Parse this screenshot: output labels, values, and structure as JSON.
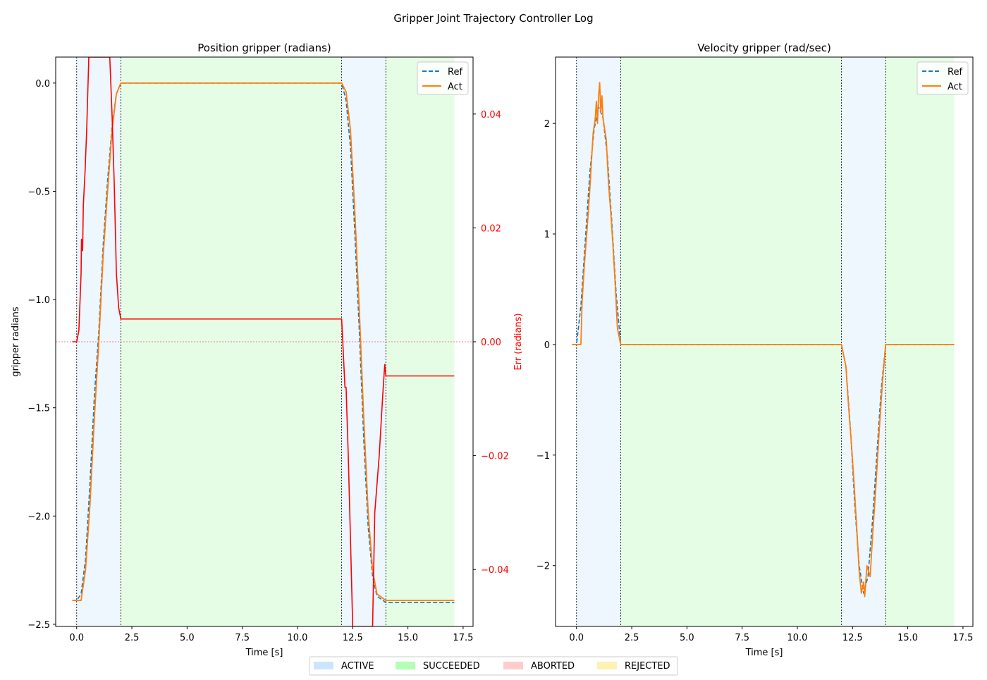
{
  "figure": {
    "title": "Gripper Joint Trajectory Controller Log"
  },
  "legend_bottom": {
    "items": [
      {
        "label": "ACTIVE",
        "color": "#cce5ff"
      },
      {
        "label": "SUCCEEDED",
        "color": "#b3ffb3"
      },
      {
        "label": "ABORTED",
        "color": "#ffcccc"
      },
      {
        "label": "REJECTED",
        "color": "#fff0b3"
      }
    ]
  },
  "colors": {
    "ref": "#1f77b4",
    "act": "#ff7f0e",
    "err": "#ff0000",
    "active_shade": "#eef6fe",
    "succeeded_shade": "#e5fde5"
  },
  "chart_data": [
    {
      "type": "line",
      "title": "Position gripper (radians)",
      "xlabel": "Time [s]",
      "ylabel": "gripper radians",
      "y2label": "Err (radians)",
      "xlim": [
        -0.95,
        17.95
      ],
      "ylim": [
        -2.51,
        0.12
      ],
      "y2lim": [
        -0.05,
        0.05
      ],
      "xticks": [
        0.0,
        2.5,
        5.0,
        7.5,
        10.0,
        12.5,
        15.0,
        17.5
      ],
      "xtick_labels": [
        "0.0",
        "2.5",
        "5.0",
        "7.5",
        "10.0",
        "12.5",
        "15.0",
        "17.5"
      ],
      "yticks": [
        0.0,
        -0.5,
        -1.0,
        -1.5,
        -2.0,
        -2.5
      ],
      "ytick_labels": [
        "0.0",
        "−0.5",
        "−1.0",
        "−1.5",
        "−2.0",
        "−2.5"
      ],
      "y2ticks": [
        0.04,
        0.02,
        0.0,
        -0.02,
        -0.04
      ],
      "y2tick_labels": [
        "0.04",
        "0.02",
        "0.00",
        "−0.02",
        "−0.04"
      ],
      "legend": {
        "position": "top-right",
        "entries": [
          "Ref",
          "Act"
        ]
      },
      "status_spans": [
        {
          "state": "ACTIVE",
          "x0": 0.0,
          "x1": 2.0
        },
        {
          "state": "SUCCEEDED",
          "x0": 2.0,
          "x1": 12.0
        },
        {
          "state": "ACTIVE",
          "x0": 12.0,
          "x1": 14.0
        },
        {
          "state": "SUCCEEDED",
          "x0": 14.0,
          "x1": 17.1
        }
      ],
      "vlines": [
        0.0,
        2.0,
        12.0,
        14.0
      ],
      "zero_err_line": 0.0,
      "series": [
        {
          "name": "Ref",
          "style": "dashed",
          "points": [
            [
              -0.2,
              -2.39
            ],
            [
              0.0,
              -2.39
            ],
            [
              0.2,
              -2.36
            ],
            [
              0.4,
              -2.2
            ],
            [
              0.6,
              -1.85
            ],
            [
              0.8,
              -1.45
            ],
            [
              1.0,
              -1.15
            ],
            [
              1.2,
              -0.75
            ],
            [
              1.4,
              -0.45
            ],
            [
              1.6,
              -0.2
            ],
            [
              1.8,
              -0.05
            ],
            [
              2.0,
              0.0
            ],
            [
              12.0,
              0.0
            ],
            [
              12.2,
              -0.08
            ],
            [
              12.4,
              -0.3
            ],
            [
              12.6,
              -0.7
            ],
            [
              12.8,
              -1.15
            ],
            [
              13.0,
              -1.65
            ],
            [
              13.2,
              -2.05
            ],
            [
              13.4,
              -2.28
            ],
            [
              13.6,
              -2.37
            ],
            [
              14.0,
              -2.4
            ],
            [
              17.1,
              -2.4
            ]
          ]
        },
        {
          "name": "Act",
          "style": "solid",
          "points": [
            [
              -0.2,
              -2.39
            ],
            [
              0.2,
              -2.39
            ],
            [
              0.4,
              -2.25
            ],
            [
              0.6,
              -1.95
            ],
            [
              0.8,
              -1.55
            ],
            [
              1.0,
              -1.2
            ],
            [
              1.2,
              -0.8
            ],
            [
              1.4,
              -0.5
            ],
            [
              1.6,
              -0.22
            ],
            [
              1.8,
              -0.05
            ],
            [
              2.0,
              0.0
            ],
            [
              12.0,
              0.0
            ],
            [
              12.2,
              -0.04
            ],
            [
              12.4,
              -0.22
            ],
            [
              12.6,
              -0.6
            ],
            [
              12.8,
              -1.05
            ],
            [
              13.0,
              -1.55
            ],
            [
              13.2,
              -1.98
            ],
            [
              13.4,
              -2.25
            ],
            [
              13.6,
              -2.36
            ],
            [
              14.0,
              -2.39
            ],
            [
              17.1,
              -2.39
            ]
          ]
        },
        {
          "name": "Err",
          "axis": "y2",
          "points": [
            [
              -0.2,
              0.0
            ],
            [
              0.0,
              0.0
            ],
            [
              0.1,
              0.002
            ],
            [
              0.2,
              0.012
            ],
            [
              0.22,
              0.018
            ],
            [
              0.27,
              0.016
            ],
            [
              0.3,
              0.024
            ],
            [
              0.38,
              0.03
            ],
            [
              0.45,
              0.037
            ],
            [
              0.55,
              0.05
            ],
            [
              0.6,
              0.05
            ],
            [
              1.5,
              0.05
            ],
            [
              1.6,
              0.04
            ],
            [
              1.7,
              0.028
            ],
            [
              1.8,
              0.012
            ],
            [
              1.9,
              0.006
            ],
            [
              2.0,
              0.004
            ],
            [
              12.0,
              0.004
            ],
            [
              12.05,
              0.0
            ],
            [
              12.15,
              -0.008
            ],
            [
              12.2,
              -0.008
            ],
            [
              12.3,
              -0.02
            ],
            [
              12.4,
              -0.035
            ],
            [
              12.5,
              -0.05
            ],
            [
              13.4,
              -0.05
            ],
            [
              13.5,
              -0.03
            ],
            [
              13.7,
              -0.02
            ],
            [
              13.85,
              -0.01
            ],
            [
              13.95,
              -0.004
            ],
            [
              14.0,
              -0.006
            ],
            [
              17.1,
              -0.006
            ]
          ]
        }
      ]
    },
    {
      "type": "line",
      "title": "Velocity gripper (rad/sec)",
      "xlabel": "Time [s]",
      "ylabel": "",
      "xlim": [
        -0.95,
        17.95
      ],
      "ylim": [
        -2.55,
        2.6
      ],
      "xticks": [
        0.0,
        2.5,
        5.0,
        7.5,
        10.0,
        12.5,
        15.0,
        17.5
      ],
      "xtick_labels": [
        "0.0",
        "2.5",
        "5.0",
        "7.5",
        "10.0",
        "12.5",
        "15.0",
        "17.5"
      ],
      "yticks": [
        2,
        1,
        0,
        -1,
        -2
      ],
      "ytick_labels": [
        "2",
        "1",
        "0",
        "−1",
        "−2"
      ],
      "legend": {
        "position": "top-right",
        "entries": [
          "Ref",
          "Act"
        ]
      },
      "status_spans": [
        {
          "state": "ACTIVE",
          "x0": 0.0,
          "x1": 2.0
        },
        {
          "state": "SUCCEEDED",
          "x0": 2.0,
          "x1": 12.0
        },
        {
          "state": "ACTIVE",
          "x0": 12.0,
          "x1": 14.0
        },
        {
          "state": "SUCCEEDED",
          "x0": 14.0,
          "x1": 17.1
        }
      ],
      "vlines": [
        0.0,
        2.0,
        12.0,
        14.0
      ],
      "series": [
        {
          "name": "Ref",
          "style": "dashed",
          "points": [
            [
              -0.2,
              0.0
            ],
            [
              0.0,
              0.0
            ],
            [
              0.2,
              0.35
            ],
            [
              0.4,
              0.95
            ],
            [
              0.6,
              1.55
            ],
            [
              0.8,
              1.95
            ],
            [
              1.0,
              2.15
            ],
            [
              1.2,
              2.05
            ],
            [
              1.4,
              1.7
            ],
            [
              1.6,
              1.1
            ],
            [
              1.8,
              0.45
            ],
            [
              2.0,
              0.0
            ],
            [
              12.0,
              0.0
            ],
            [
              12.2,
              -0.2
            ],
            [
              12.4,
              -0.75
            ],
            [
              12.6,
              -1.45
            ],
            [
              12.8,
              -2.0
            ],
            [
              13.0,
              -2.25
            ],
            [
              13.2,
              -2.1
            ],
            [
              13.4,
              -1.6
            ],
            [
              13.6,
              -1.0
            ],
            [
              13.8,
              -0.4
            ],
            [
              14.0,
              0.0
            ],
            [
              17.1,
              0.0
            ]
          ]
        },
        {
          "name": "Act",
          "style": "solid",
          "points": [
            [
              -0.2,
              0.0
            ],
            [
              0.2,
              0.0
            ],
            [
              0.25,
              0.38
            ],
            [
              0.35,
              0.7
            ],
            [
              0.5,
              1.1
            ],
            [
              0.6,
              1.4
            ],
            [
              0.75,
              1.9
            ],
            [
              0.85,
              2.05
            ],
            [
              0.9,
              2.2
            ],
            [
              0.95,
              2.0
            ],
            [
              1.0,
              2.25
            ],
            [
              1.05,
              2.37
            ],
            [
              1.1,
              2.1
            ],
            [
              1.15,
              2.25
            ],
            [
              1.2,
              2.05
            ],
            [
              1.35,
              1.85
            ],
            [
              1.45,
              1.45
            ],
            [
              1.55,
              1.2
            ],
            [
              1.65,
              0.9
            ],
            [
              1.75,
              0.55
            ],
            [
              1.85,
              0.15
            ],
            [
              2.0,
              0.0
            ],
            [
              12.0,
              0.0
            ],
            [
              12.2,
              -0.2
            ],
            [
              12.3,
              -0.5
            ],
            [
              12.45,
              -0.9
            ],
            [
              12.55,
              -1.2
            ],
            [
              12.7,
              -1.7
            ],
            [
              12.8,
              -2.05
            ],
            [
              12.9,
              -2.25
            ],
            [
              13.0,
              -2.15
            ],
            [
              13.05,
              -2.28
            ],
            [
              13.15,
              -2.0
            ],
            [
              13.3,
              -2.1
            ],
            [
              13.4,
              -1.75
            ],
            [
              13.55,
              -1.3
            ],
            [
              13.7,
              -0.8
            ],
            [
              13.85,
              -0.35
            ],
            [
              14.0,
              0.0
            ],
            [
              17.1,
              0.0
            ]
          ]
        }
      ]
    }
  ]
}
